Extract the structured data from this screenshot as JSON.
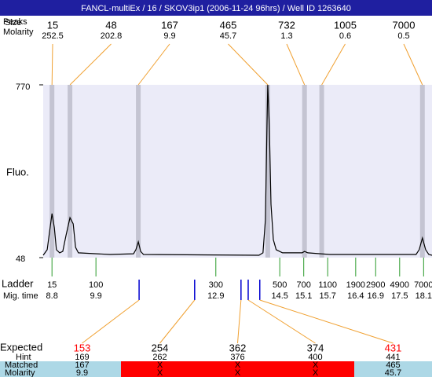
{
  "header": {
    "title": "FANCL-multiEx / 16 / SKOV3ip1 (2006-11-24 96hrs) / Well ID 1263640"
  },
  "peak_table": {
    "labels": [
      "Peaks",
      "Size",
      "Molarity"
    ],
    "size": [
      15,
      48,
      167,
      465,
      732,
      1005,
      7000
    ],
    "molarity": [
      252.5,
      202.8,
      9.9,
      45.7,
      1.3,
      0.6,
      0.5
    ]
  },
  "chart_data": {
    "type": "line",
    "ylabel": "Fluo.",
    "color": "#000000",
    "x": [
      8.58,
      8.68,
      8.74,
      8.8,
      8.86,
      8.91,
      8.99,
      9.07,
      9.15,
      9.25,
      9.33,
      9.39,
      9.46,
      10.25,
      10.84,
      10.9,
      10.96,
      11.02,
      11.09,
      13.98,
      14.08,
      14.14,
      14.18,
      14.2,
      14.24,
      14.28,
      14.34,
      14.41,
      14.57,
      15.06,
      15.12,
      15.2,
      15.75,
      17.91,
      17.99,
      18.07,
      18.15,
      18.23,
      18.31
    ],
    "values": [
      58,
      81,
      156,
      232,
      173,
      81,
      68,
      74,
      140,
      215,
      189,
      91,
      68,
      61,
      64,
      81,
      114,
      74,
      61,
      58,
      68,
      206,
      599,
      770,
      599,
      271,
      123,
      81,
      68,
      68,
      74,
      68,
      61,
      61,
      81,
      130,
      81,
      61,
      58
    ],
    "xlim": [
      8.58,
      18.31
    ],
    "ylim": [
      48,
      770
    ],
    "yticks": [
      48,
      770
    ],
    "peak_times": [
      8.8,
      9.25,
      10.96,
      14.2,
      15.12,
      15.55,
      18.07
    ]
  },
  "ladder": {
    "labels": [
      "Ladder",
      "Mig. time"
    ],
    "size": [
      15,
      100,
      300,
      500,
      700,
      1100,
      1900,
      2900,
      4900,
      7000
    ],
    "mig_time": [
      8.8,
      9.9,
      12.9,
      14.5,
      15.1,
      15.7,
      16.4,
      16.9,
      17.5,
      18.1
    ]
  },
  "expected": {
    "labels": [
      "Expected",
      "Hint",
      "Matched",
      "Molarity"
    ],
    "expected": [
      153,
      254,
      362,
      374,
      431
    ],
    "hint": [
      169,
      262,
      376,
      400,
      441
    ],
    "matched": [
      167,
      "X",
      "X",
      "X",
      465
    ],
    "molarity": [
      9.9,
      "X",
      "X",
      "X",
      45.7
    ],
    "time": [
      10.98,
      12.37,
      13.53,
      13.71,
      14.0
    ],
    "expected_colors": [
      "#ff0000",
      "#000000",
      "#000000",
      "#000000",
      "#ff0000"
    ],
    "row_colors": [
      "#add8e6",
      "#ff0000",
      "#ff0000",
      "#ff0000",
      "#add8e6"
    ]
  }
}
